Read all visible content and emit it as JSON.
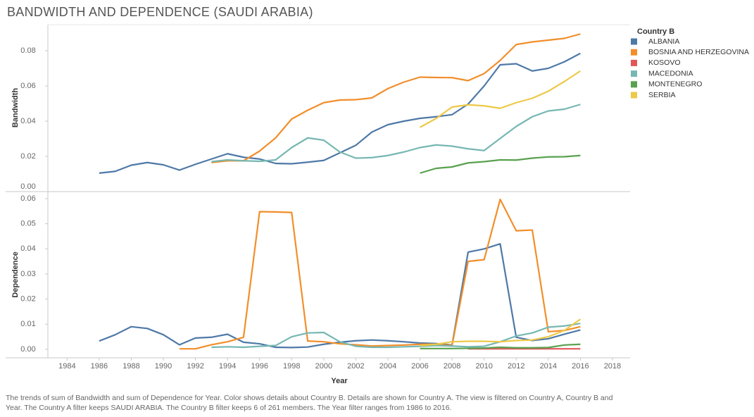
{
  "chart_data": [
    {
      "type": "line",
      "title": "BANDWIDTH AND DEPENDENCE (SAUDI ARABIA)",
      "ylabel": "Bandwidth",
      "legend_title": "Country B",
      "legend": "right",
      "x": [
        1986,
        1987,
        1988,
        1989,
        1990,
        1991,
        1992,
        1993,
        1994,
        1995,
        1996,
        1997,
        1998,
        1999,
        2000,
        2001,
        2002,
        2003,
        2004,
        2005,
        2006,
        2007,
        2008,
        2009,
        2010,
        2011,
        2012,
        2013,
        2014,
        2015,
        2016
      ],
      "xlim": [
        1982.8,
        2019.1
      ],
      "ylim": [
        0,
        0.0948
      ],
      "yticks": [
        {
          "value": 0,
          "label": "0.00"
        },
        {
          "value": 0.02,
          "label": "0.02"
        },
        {
          "value": 0.04,
          "label": "0.04"
        },
        {
          "value": 0.06,
          "label": "0.06"
        },
        {
          "value": 0.08,
          "label": "0.08"
        }
      ],
      "series": [
        {
          "name": "ALBANIA",
          "color": "#4e79a7",
          "values": [
            0.0105,
            0.0115,
            0.015,
            0.0165,
            0.0152,
            0.0122,
            0.0155,
            0.0185,
            0.0215,
            0.0195,
            0.0185,
            0.016,
            0.0158,
            0.0167,
            0.0177,
            0.022,
            0.0263,
            0.0338,
            0.038,
            0.04,
            0.0416,
            0.0425,
            0.0437,
            0.0497,
            0.06,
            0.072,
            0.0726,
            0.0685,
            0.07,
            0.0737,
            0.0785
          ]
        },
        {
          "name": "BOSNIA AND HERZEGOVINA",
          "color": "#f28e2b",
          "values": [
            null,
            null,
            null,
            null,
            null,
            null,
            null,
            0.0165,
            0.0175,
            0.0175,
            0.023,
            0.0305,
            0.0412,
            0.0462,
            0.0505,
            0.052,
            0.0522,
            0.0532,
            0.0585,
            0.0622,
            0.065,
            0.0648,
            0.0647,
            0.063,
            0.067,
            0.0745,
            0.0835,
            0.085,
            0.086,
            0.087,
            0.0895
          ]
        },
        {
          "name": "KOSOVO",
          "color": "#e15759",
          "values": [
            null,
            null,
            null,
            null,
            null,
            null,
            null,
            null,
            null,
            null,
            null,
            null,
            null,
            null,
            null,
            null,
            null,
            null,
            null,
            null,
            null,
            null,
            null,
            null,
            null,
            null,
            null,
            null,
            null,
            null,
            null
          ]
        },
        {
          "name": "MACEDONIA",
          "color": "#76b7b2",
          "values": [
            null,
            null,
            null,
            null,
            null,
            null,
            null,
            0.017,
            0.018,
            0.0175,
            0.0172,
            0.018,
            0.025,
            0.0305,
            0.0292,
            0.0225,
            0.019,
            0.0193,
            0.0205,
            0.0225,
            0.025,
            0.0265,
            0.0258,
            0.0243,
            0.0233,
            0.0302,
            0.037,
            0.0425,
            0.0458,
            0.0468,
            0.0495
          ]
        },
        {
          "name": "MONTENEGRO",
          "color": "#59a14f",
          "values": [
            null,
            null,
            null,
            null,
            null,
            null,
            null,
            null,
            null,
            null,
            null,
            null,
            null,
            null,
            null,
            null,
            null,
            null,
            null,
            null,
            0.0105,
            0.0132,
            0.014,
            0.0163,
            0.017,
            0.018,
            0.0179,
            0.019,
            0.0197,
            0.0198,
            0.0205
          ]
        },
        {
          "name": "SERBIA",
          "color": "#edc948",
          "values": [
            null,
            null,
            null,
            null,
            null,
            null,
            null,
            null,
            null,
            null,
            null,
            null,
            null,
            null,
            null,
            null,
            null,
            null,
            null,
            null,
            0.0365,
            0.0415,
            0.048,
            0.0493,
            0.0487,
            0.0473,
            0.0505,
            0.053,
            0.057,
            0.0625,
            0.0685
          ]
        }
      ]
    },
    {
      "type": "line",
      "ylabel": "Dependence",
      "xlabel": "Year",
      "caption": "The trends of sum of Bandwidth and sum of Dependence for Year.  Color shows details about Country B.  Details are shown for Country A. The view is filtered on Country A, Country B and Year. The Country A filter keeps SAUDI ARABIA. The Country B filter keeps 6 of 261 members. The Year filter ranges from 1986 to 2016.",
      "x": [
        1986,
        1987,
        1988,
        1989,
        1990,
        1991,
        1992,
        1993,
        1994,
        1995,
        1996,
        1997,
        1998,
        1999,
        2000,
        2001,
        2002,
        2003,
        2004,
        2005,
        2006,
        2007,
        2008,
        2009,
        2010,
        2011,
        2012,
        2013,
        2014,
        2015,
        2016
      ],
      "xlim": [
        1982.8,
        2019.1
      ],
      "xticks": [
        1984,
        1986,
        1988,
        1990,
        1992,
        1994,
        1996,
        1998,
        2000,
        2002,
        2004,
        2006,
        2008,
        2010,
        2012,
        2014,
        2016,
        2018
      ],
      "ylim": [
        -0.0034,
        0.0628
      ],
      "yticks": [
        {
          "value": 0,
          "label": "0.00"
        },
        {
          "value": 0.01,
          "label": "0.01"
        },
        {
          "value": 0.02,
          "label": "0.02"
        },
        {
          "value": 0.03,
          "label": "0.03"
        },
        {
          "value": 0.04,
          "label": "0.04"
        },
        {
          "value": 0.05,
          "label": "0.05"
        },
        {
          "value": 0.06,
          "label": "0.06"
        }
      ],
      "series": [
        {
          "name": "ALBANIA",
          "color": "#4e79a7",
          "values": [
            0.0033,
            0.0058,
            0.009,
            0.0083,
            0.0058,
            0.0018,
            0.0045,
            0.0048,
            0.006,
            0.0028,
            0.0022,
            0.0008,
            0.0007,
            0.0009,
            0.002,
            0.0028,
            0.0034,
            0.0037,
            0.0034,
            0.003,
            0.0025,
            0.0023,
            0.0017,
            0.0387,
            0.04,
            0.042,
            0.0048,
            0.0035,
            0.0042,
            0.006,
            0.0077
          ]
        },
        {
          "name": "BOSNIA AND HERZEGOVINA",
          "color": "#f28e2b",
          "values": [
            null,
            null,
            null,
            null,
            null,
            0.0002,
            0.0002,
            0.0018,
            0.003,
            0.0048,
            0.0548,
            0.0547,
            0.0545,
            0.0033,
            0.003,
            0.0022,
            0.0018,
            0.0013,
            0.0015,
            0.0017,
            0.002,
            0.002,
            0.0015,
            0.035,
            0.0357,
            0.0597,
            0.0472,
            0.0475,
            0.007,
            0.0075,
            0.009
          ]
        },
        {
          "name": "KOSOVO",
          "color": "#e15759",
          "values": [
            null,
            null,
            null,
            null,
            null,
            null,
            null,
            null,
            null,
            null,
            null,
            null,
            null,
            null,
            null,
            null,
            null,
            null,
            null,
            null,
            null,
            null,
            null,
            0.0002,
            0.0002,
            0.0002,
            0.0002,
            0.0002,
            0.0002,
            0.0002,
            0.0002
          ]
        },
        {
          "name": "MACEDONIA",
          "color": "#76b7b2",
          "values": [
            null,
            null,
            null,
            null,
            null,
            null,
            null,
            0.0008,
            0.001,
            0.0008,
            0.0012,
            0.0015,
            0.005,
            0.0065,
            0.0067,
            0.003,
            0.0012,
            0.0008,
            0.0008,
            0.001,
            0.0012,
            0.0015,
            0.0013,
            0.001,
            0.0012,
            0.003,
            0.0053,
            0.0065,
            0.0088,
            0.0093,
            0.0103
          ]
        },
        {
          "name": "MONTENEGRO",
          "color": "#59a14f",
          "values": [
            null,
            null,
            null,
            null,
            null,
            null,
            null,
            null,
            null,
            null,
            null,
            null,
            null,
            null,
            null,
            null,
            null,
            null,
            null,
            null,
            0.0003,
            0.0003,
            0.0003,
            0.0004,
            0.0005,
            0.0008,
            0.0006,
            0.0006,
            0.0007,
            0.0017,
            0.002
          ]
        },
        {
          "name": "SERBIA",
          "color": "#edc948",
          "values": [
            null,
            null,
            null,
            null,
            null,
            null,
            null,
            null,
            null,
            null,
            null,
            null,
            null,
            null,
            null,
            null,
            null,
            null,
            null,
            null,
            0.0015,
            0.002,
            0.003,
            0.0032,
            0.0032,
            0.003,
            0.0035,
            0.0037,
            0.005,
            0.0075,
            0.012
          ]
        }
      ]
    }
  ]
}
